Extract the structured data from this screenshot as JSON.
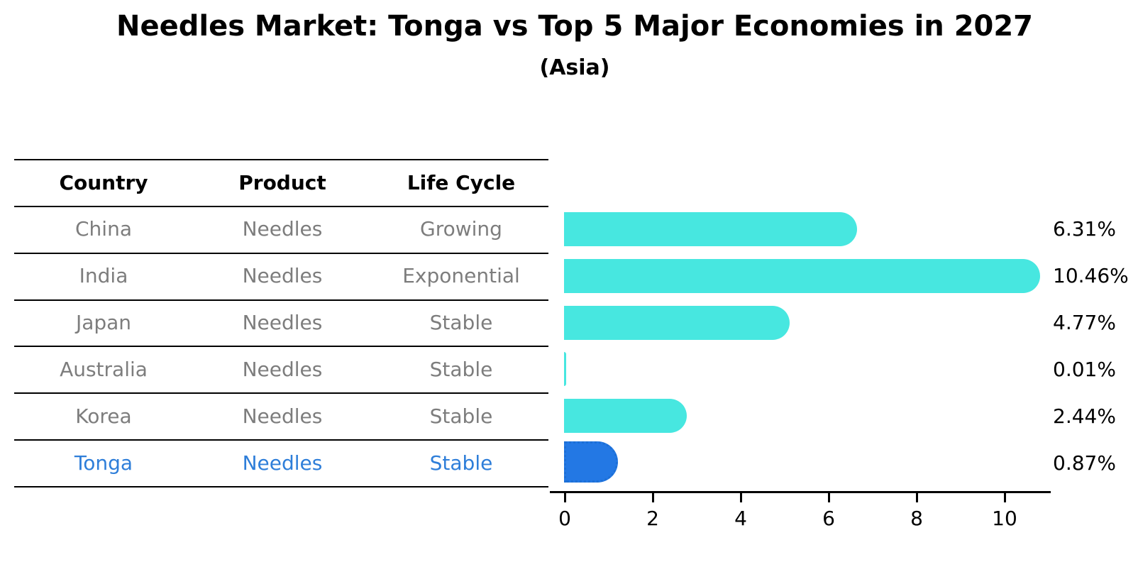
{
  "chart_data": {
    "type": "bar",
    "orientation": "horizontal",
    "title": "Needles Market: Tonga vs Top 5 Major Economies in 2027",
    "subtitle": "(Asia)",
    "categories": [
      "China",
      "India",
      "Japan",
      "Australia",
      "Korea",
      "Tonga"
    ],
    "values": [
      6.31,
      10.46,
      4.77,
      0.01,
      2.44,
      0.87
    ],
    "value_labels": [
      "6.31%",
      "10.46%",
      "4.77%",
      "0.01%",
      "2.44%",
      "0.87%"
    ],
    "x_ticks": [
      "0",
      "2",
      "4",
      "6",
      "8",
      "10"
    ],
    "x_tick_values": [
      0,
      2,
      4,
      6,
      8,
      10
    ],
    "xlim": [
      0,
      11
    ],
    "grid": false,
    "legend": false,
    "highlight_category": "Tonga",
    "highlight_index": 5,
    "colors": {
      "bar": "#47E7E0",
      "highlight_bar": "#2378E4",
      "highlight_bar_border": "#1C6FD6",
      "highlight_text": "#2E7ED9",
      "row_text": "#7D7D7D",
      "header_text": "#000000",
      "axis": "#000000"
    }
  },
  "table": {
    "headers": [
      "Country",
      "Product",
      "Life Cycle"
    ],
    "rows": [
      {
        "country": "China",
        "product": "Needles",
        "life_cycle": "Growing"
      },
      {
        "country": "India",
        "product": "Needles",
        "life_cycle": "Exponential"
      },
      {
        "country": "Japan",
        "product": "Needles",
        "life_cycle": "Stable"
      },
      {
        "country": "Australia",
        "product": "Needles",
        "life_cycle": "Stable"
      },
      {
        "country": "Korea",
        "product": "Needles",
        "life_cycle": "Stable"
      },
      {
        "country": "Tonga",
        "product": "Needles",
        "life_cycle": "Stable"
      }
    ]
  }
}
